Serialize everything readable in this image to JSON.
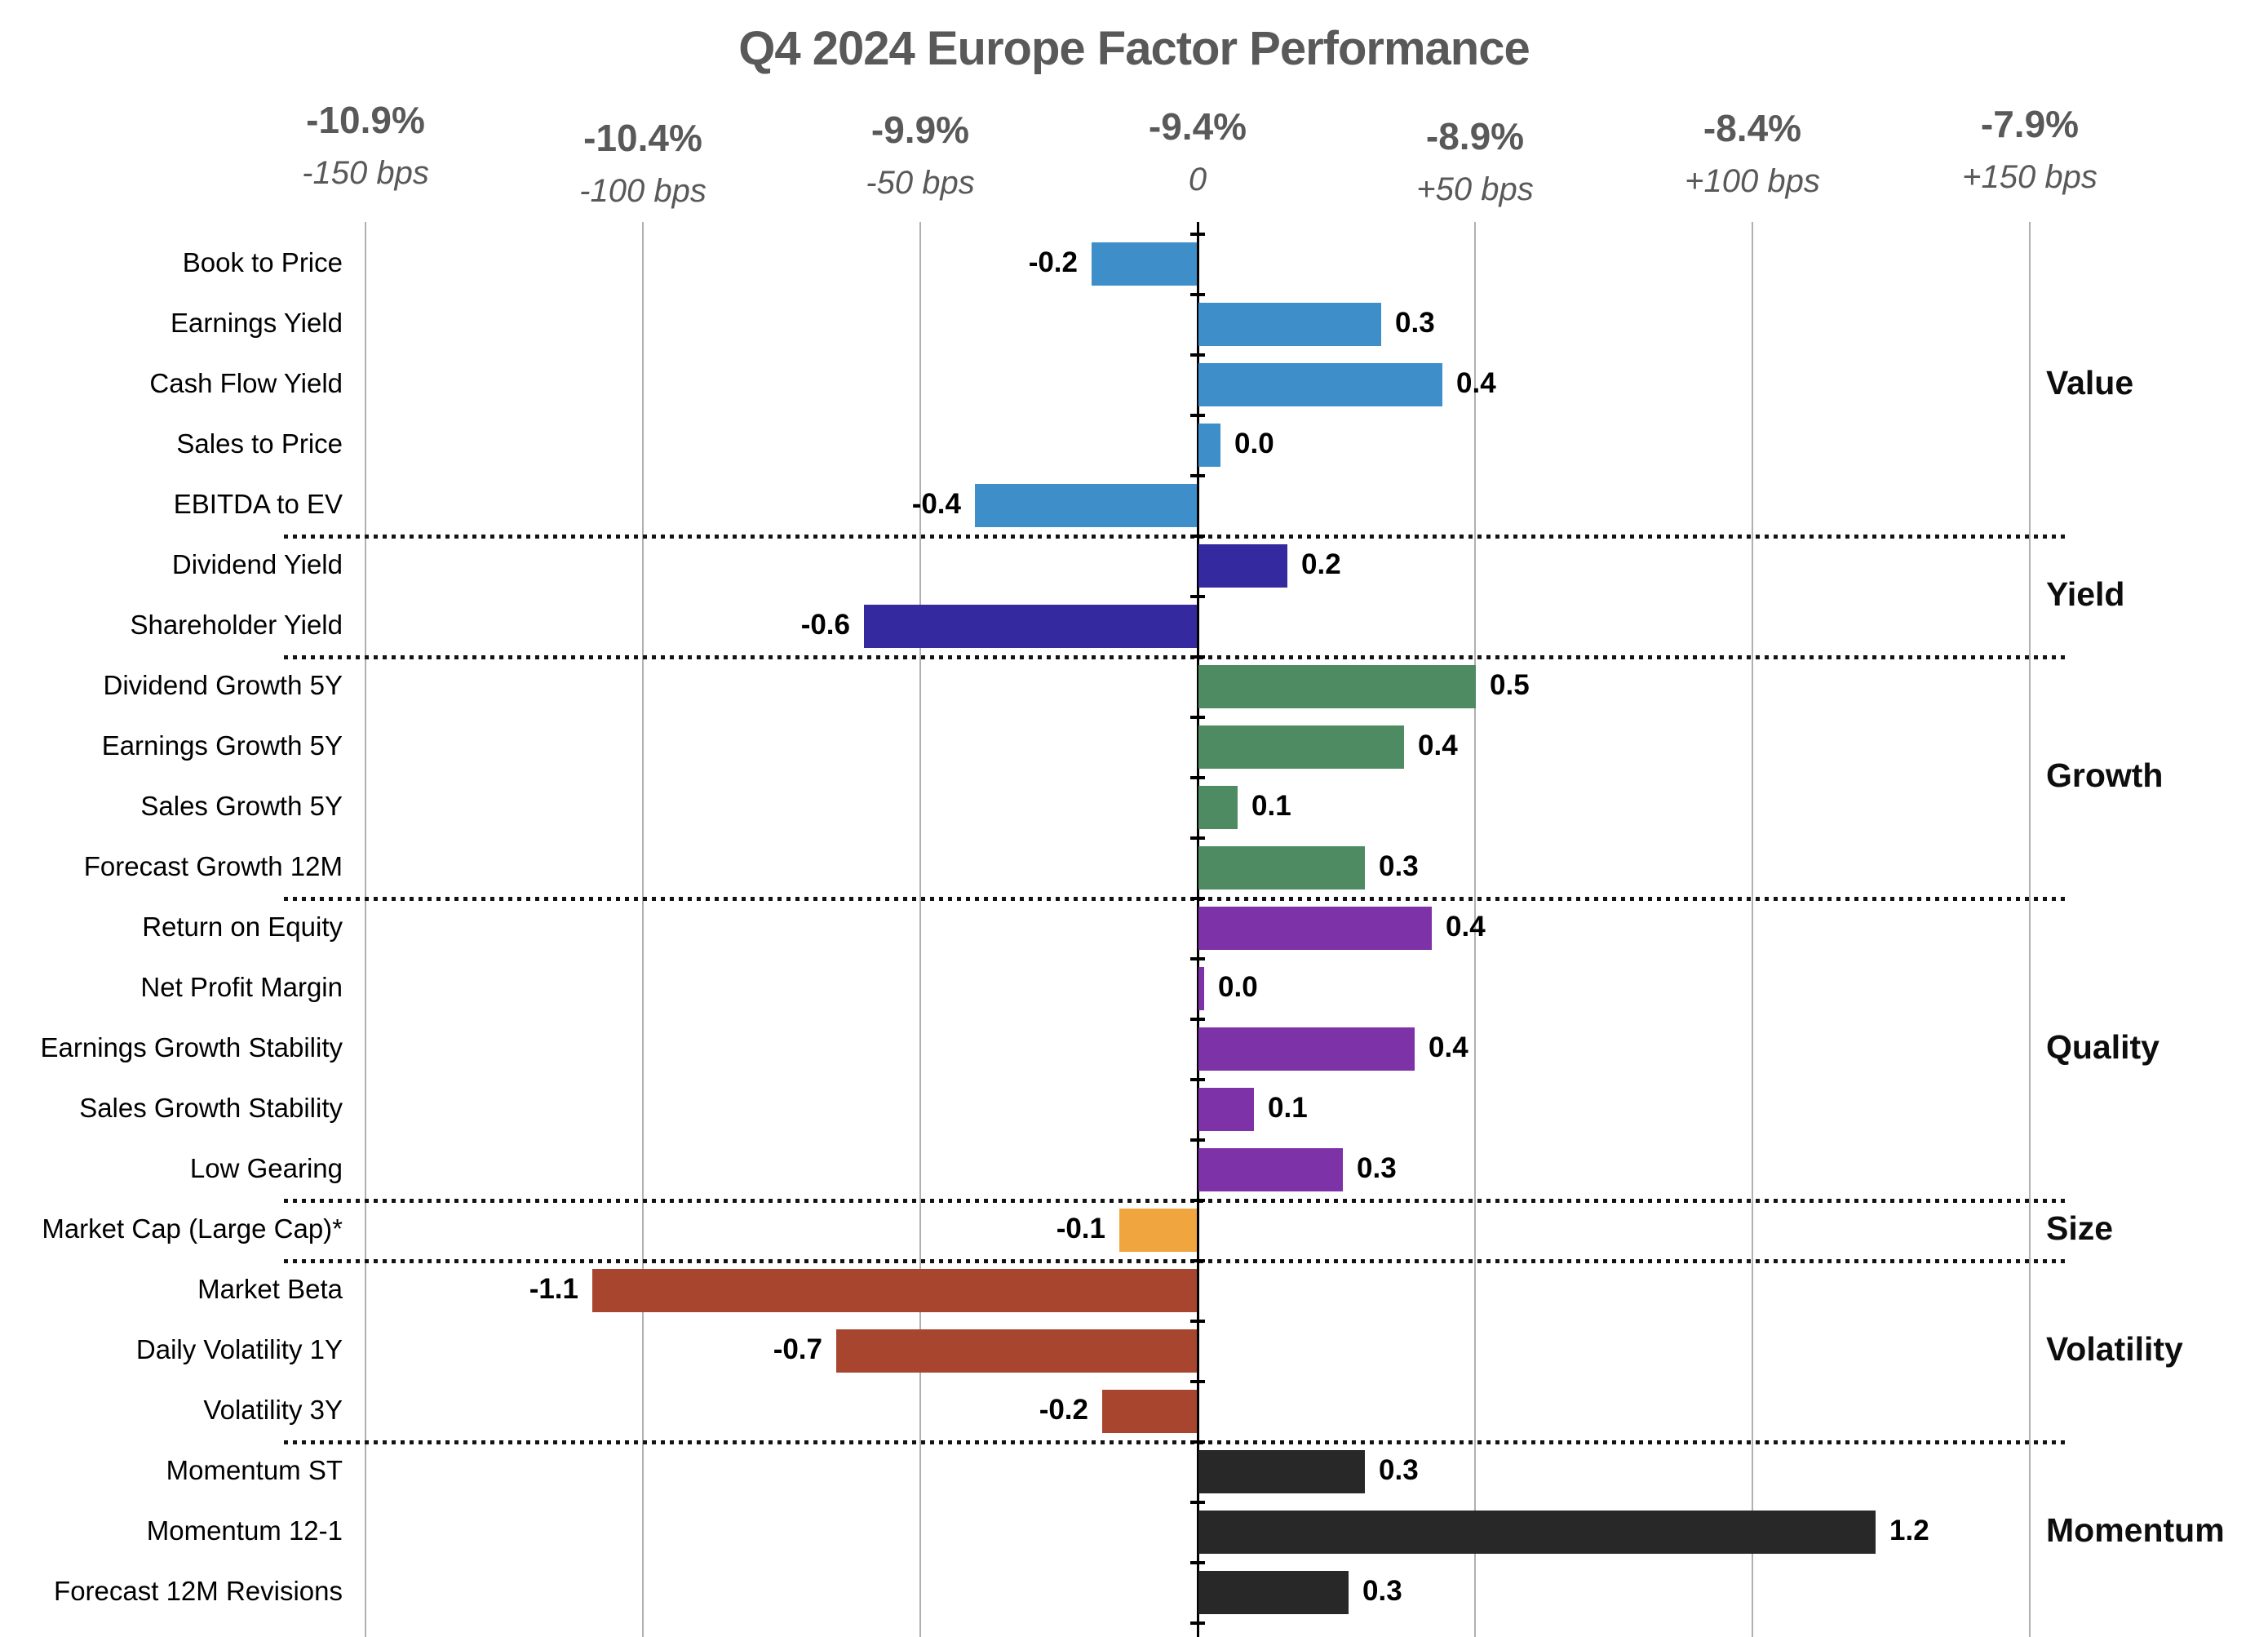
{
  "title": "Q4 2024 Europe Factor Performance",
  "chart_data": {
    "type": "bar",
    "orientation": "horizontal",
    "title": "Q4 2024 Europe Factor Performance",
    "x_axis": {
      "gridlines": true,
      "range_bps": [
        -150,
        150
      ],
      "ticks": [
        {
          "pct": "-10.9%",
          "bps": "-150 bps"
        },
        {
          "pct": "-10.4%",
          "bps": "-100 bps"
        },
        {
          "pct": "-9.9%",
          "bps": "-50 bps"
        },
        {
          "pct": "-9.4%",
          "bps": "0"
        },
        {
          "pct": "-8.9%",
          "bps": "+50 bps"
        },
        {
          "pct": "-8.4%",
          "bps": "+100 bps"
        },
        {
          "pct": "-7.9%",
          "bps": "+150 bps"
        }
      ]
    },
    "note": "value_label is the printed data label (%); value is the bar extent in % (1.0 = 100 bps)",
    "groups": [
      {
        "name": "Value",
        "color": "#3e8ec9",
        "factors": [
          {
            "label": "Book to Price",
            "value_label": "-0.2",
            "value": -0.19
          },
          {
            "label": "Earnings Yield",
            "value_label": "0.3",
            "value": 0.33
          },
          {
            "label": "Cash Flow Yield",
            "value_label": "0.4",
            "value": 0.44
          },
          {
            "label": "Sales to Price",
            "value_label": "0.0",
            "value": 0.04
          },
          {
            "label": "EBITDA to EV",
            "value_label": "-0.4",
            "value": -0.4
          }
        ]
      },
      {
        "name": "Yield",
        "color": "#34299e",
        "factors": [
          {
            "label": "Dividend Yield",
            "value_label": "0.2",
            "value": 0.16
          },
          {
            "label": "Shareholder Yield",
            "value_label": "-0.6",
            "value": -0.6
          }
        ]
      },
      {
        "name": "Growth",
        "color": "#4f8b62",
        "factors": [
          {
            "label": "Dividend Growth 5Y",
            "value_label": "0.5",
            "value": 0.5
          },
          {
            "label": "Earnings Growth 5Y",
            "value_label": "0.4",
            "value": 0.37
          },
          {
            "label": "Sales Growth 5Y",
            "value_label": "0.1",
            "value": 0.07
          },
          {
            "label": "Forecast Growth 12M",
            "value_label": "0.3",
            "value": 0.3
          }
        ]
      },
      {
        "name": "Quality",
        "color": "#7d32a8",
        "factors": [
          {
            "label": "Return on Equity",
            "value_label": "0.4",
            "value": 0.42
          },
          {
            "label": "Net Profit Margin",
            "value_label": "0.0",
            "value": 0.01
          },
          {
            "label": "Earnings Growth Stability",
            "value_label": "0.4",
            "value": 0.39
          },
          {
            "label": "Sales Growth Stability",
            "value_label": "0.1",
            "value": 0.1
          },
          {
            "label": "Low Gearing",
            "value_label": "0.3",
            "value": 0.26
          }
        ]
      },
      {
        "name": "Size",
        "color": "#f0a53e",
        "factors": [
          {
            "label": "Market Cap (Large Cap)*",
            "value_label": "-0.1",
            "value": -0.14
          }
        ]
      },
      {
        "name": "Volatility",
        "color": "#a8452f",
        "factors": [
          {
            "label": "Market Beta",
            "value_label": "-1.1",
            "value": -1.09
          },
          {
            "label": "Daily Volatility 1Y",
            "value_label": "-0.7",
            "value": -0.65
          },
          {
            "label": "Volatility 3Y",
            "value_label": "-0.2",
            "value": -0.17
          }
        ]
      },
      {
        "name": "Momentum",
        "color": "#282828",
        "factors": [
          {
            "label": "Momentum ST",
            "value_label": "0.3",
            "value": 0.3
          },
          {
            "label": "Momentum 12-1",
            "value_label": "1.2",
            "value": 1.22
          },
          {
            "label": "Forecast 12M Revisions",
            "value_label": "0.3",
            "value": 0.27
          }
        ]
      }
    ]
  }
}
